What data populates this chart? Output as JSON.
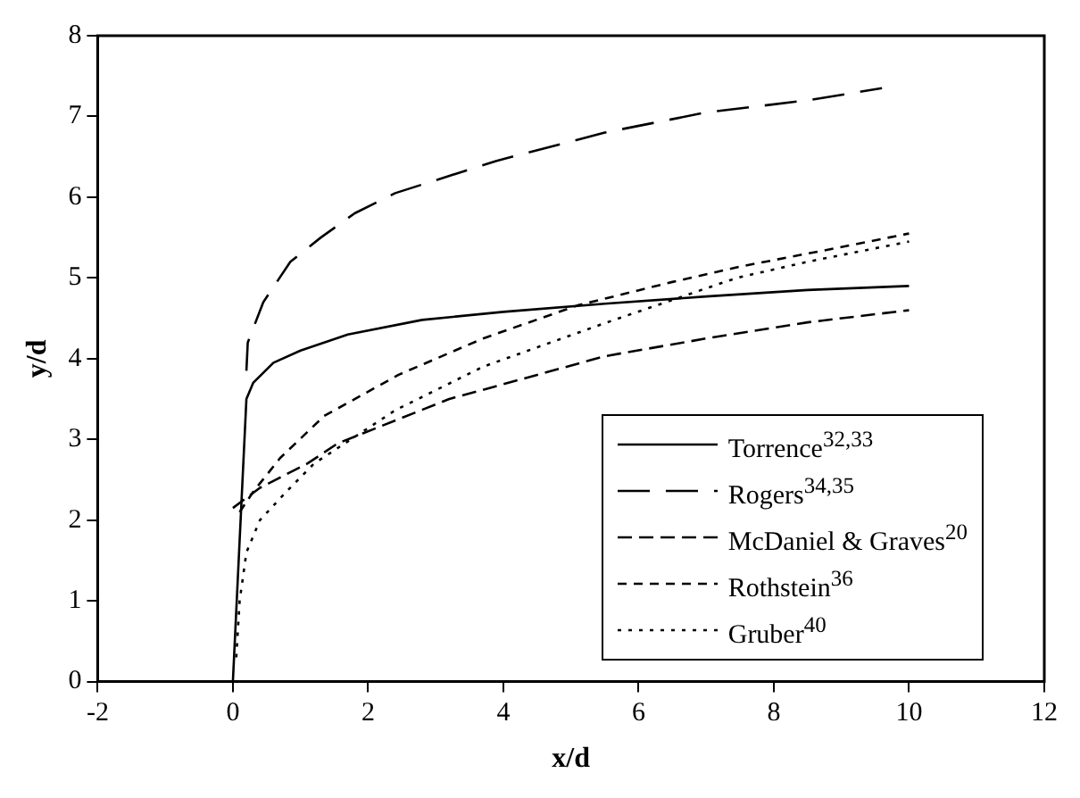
{
  "chart_data": {
    "type": "line",
    "xlabel": "x/d",
    "ylabel": "y/d",
    "xlim": [
      -2,
      12
    ],
    "xticks": [
      -2,
      0,
      2,
      4,
      6,
      8,
      10,
      12
    ],
    "ylim": [
      0,
      8
    ],
    "yticks": [
      0,
      1,
      2,
      3,
      4,
      5,
      6,
      7,
      8
    ],
    "grid": false,
    "legend": "bottom right",
    "marker": "none",
    "series": [
      {
        "name": "Torrence$^{32,33}$",
        "color": "#000000",
        "line_style": "solid",
        "x": [
          0,
          0.2,
          0.3,
          0.6,
          1,
          1.7,
          2.8,
          4,
          5.5,
          7,
          8.5,
          10
        ],
        "values": [
          0,
          3.5,
          3.7,
          3.95,
          4.1,
          4.3,
          4.48,
          4.58,
          4.68,
          4.77,
          4.85,
          4.9
        ]
      },
      {
        "name": "Rogers$^{34,35}$",
        "color": "#000000",
        "line_style": "dashed",
        "x": [
          0.2,
          0.22,
          0.45,
          0.85,
          1.3,
          1.8,
          2.4,
          3.9,
          5.5,
          7,
          8.5,
          9.6
        ],
        "values": [
          3.85,
          4.2,
          4.7,
          5.2,
          5.5,
          5.8,
          6.05,
          6.45,
          6.8,
          7.05,
          7.2,
          7.35
        ]
      },
      {
        "name": "McDaniel & Graves$^{20}$",
        "color": "#000000",
        "line_style": "dashed",
        "x": [
          0,
          0.4,
          1.1,
          1.55,
          3.2,
          5.5,
          7,
          8.5,
          10
        ],
        "values": [
          2.15,
          2.4,
          2.7,
          2.95,
          3.5,
          4.03,
          4.25,
          4.45,
          4.6
        ]
      },
      {
        "name": "Rothstein$^{36}$",
        "color": "#000000",
        "line_style": "dashed",
        "x": [
          0.1,
          0.3,
          0.7,
          1.35,
          2.45,
          3.7,
          5.1,
          6.5,
          7.5,
          8.8,
          10
        ],
        "values": [
          2.1,
          2.35,
          2.77,
          3.29,
          3.8,
          4.25,
          4.66,
          4.95,
          5.14,
          5.35,
          5.55
        ]
      },
      {
        "name": "Gruber$^{40}$",
        "color": "#000000",
        "line_style": "dotted",
        "x": [
          0.05,
          0.1,
          0.2,
          0.4,
          0.8,
          1.2,
          2.4,
          3.7,
          5.5,
          7.45,
          8.5,
          10
        ],
        "values": [
          0.3,
          1.0,
          1.6,
          2.0,
          2.36,
          2.7,
          3.36,
          3.9,
          4.44,
          5.0,
          5.2,
          5.45
        ]
      }
    ]
  }
}
